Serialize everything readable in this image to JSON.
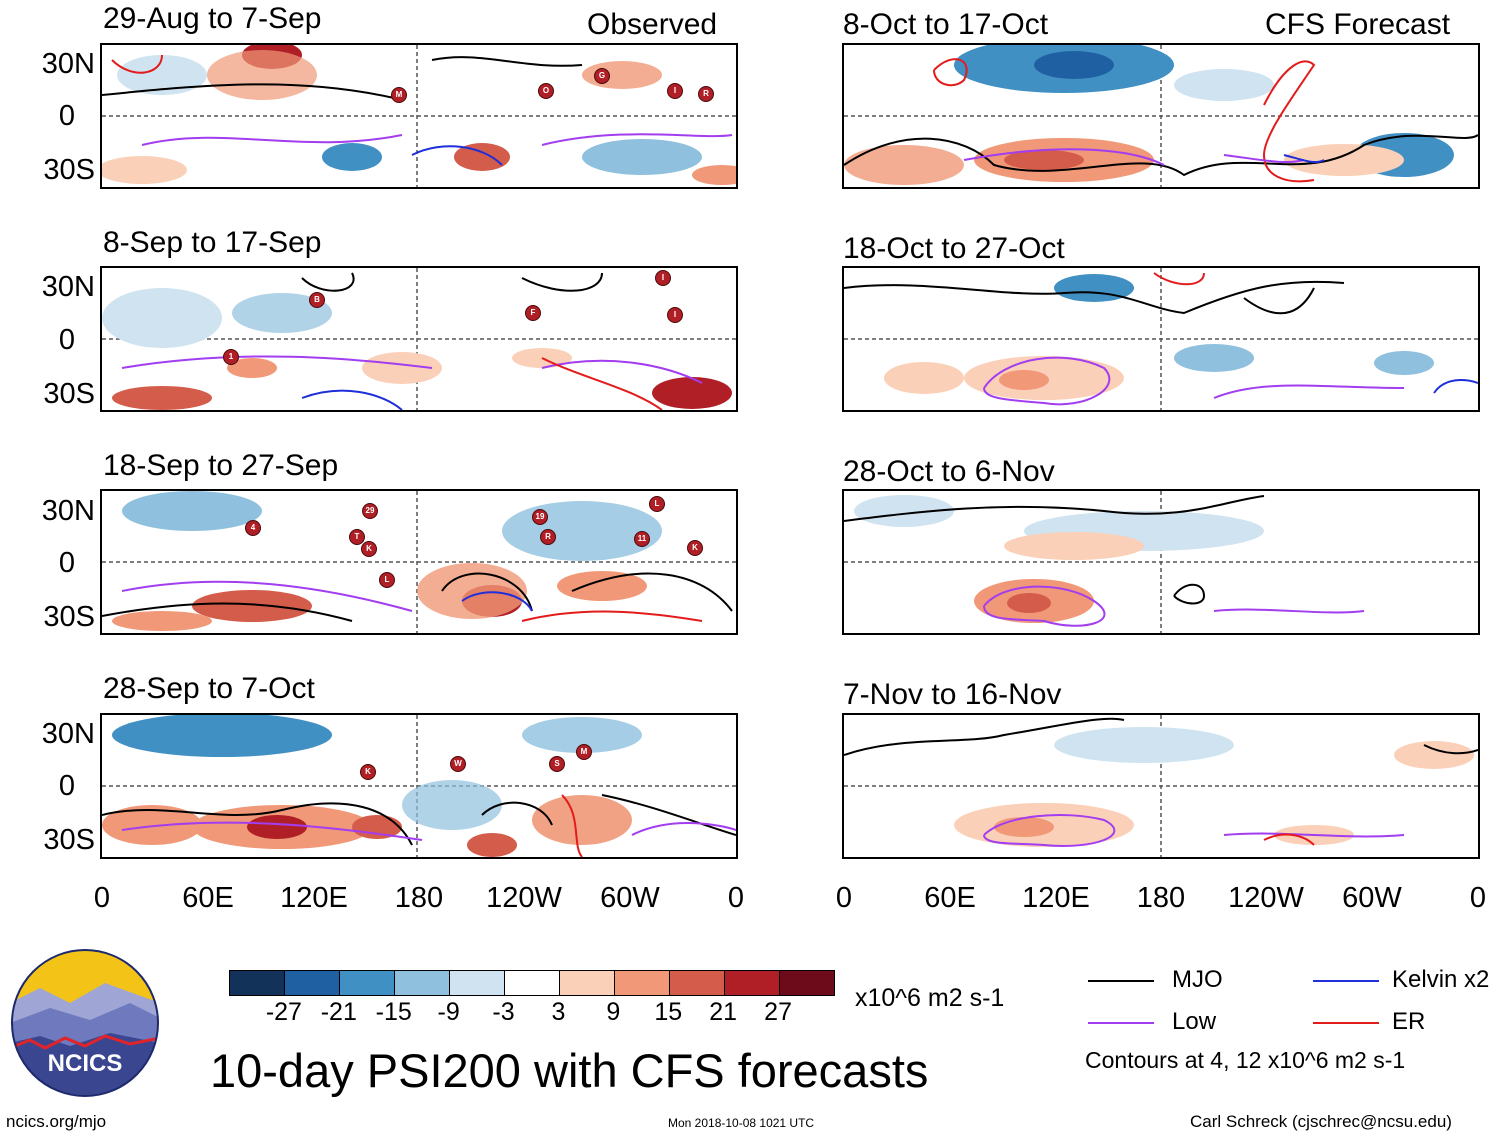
{
  "header": {
    "left_label": "Observed",
    "right_label": "CFS Forecast"
  },
  "y_axis_labels": [
    "30N",
    "0",
    "30S"
  ],
  "x_axis_labels": [
    "0",
    "60E",
    "120E",
    "180",
    "120W",
    "60W",
    "0"
  ],
  "panels_observed": [
    {
      "period": "29-Aug to 7-Sep",
      "storm_markers": [
        "M",
        "O",
        "G",
        "I",
        "R"
      ]
    },
    {
      "period": "8-Sep to 17-Sep",
      "storm_markers": [
        "B",
        "1",
        "F",
        "I",
        "I"
      ]
    },
    {
      "period": "18-Sep to 27-Sep",
      "storm_markers": [
        "29",
        "T",
        "K",
        "L",
        "19",
        "R",
        "11",
        "L",
        "K",
        "4"
      ]
    },
    {
      "period": "28-Sep to 7-Oct",
      "storm_markers": [
        "K",
        "W",
        "S",
        "M"
      ]
    }
  ],
  "panels_forecast": [
    {
      "period": "8-Oct to 17-Oct"
    },
    {
      "period": "18-Oct to 27-Oct"
    },
    {
      "period": "28-Oct to 6-Nov"
    },
    {
      "period": "7-Nov to 16-Nov"
    }
  ],
  "colorbar": {
    "tick_labels": [
      "-27",
      "-21",
      "-15",
      "-9",
      "-3",
      "3",
      "9",
      "15",
      "21",
      "27"
    ],
    "unit": "x10^6 m2 s-1",
    "colors": [
      "#13325a",
      "#1f60a3",
      "#4190c4",
      "#8fc0de",
      "#cfe3f0",
      "#ffffff",
      "#fbd0b8",
      "#f09877",
      "#d45c4b",
      "#b01e26",
      "#6e0b1b"
    ]
  },
  "legend": {
    "items": [
      {
        "label": "MJO",
        "color": "#000000"
      },
      {
        "label": "Kelvin x2",
        "color": "#1f2fd9"
      },
      {
        "label": "Low",
        "color": "#a23df0"
      },
      {
        "label": "ER",
        "color": "#e31b1b"
      }
    ],
    "contour_note": "Contours at 4, 12 x10^6 m2 s-1"
  },
  "logo": {
    "text": "NCICS"
  },
  "main_title": "10-day PSI200 with CFS forecasts",
  "footer": {
    "url": "ncics.org/mjo",
    "timestamp": "Mon 2018-10-08 1021 UTC",
    "author": "Carl Schreck (cjschrec@ncsu.edu)"
  }
}
